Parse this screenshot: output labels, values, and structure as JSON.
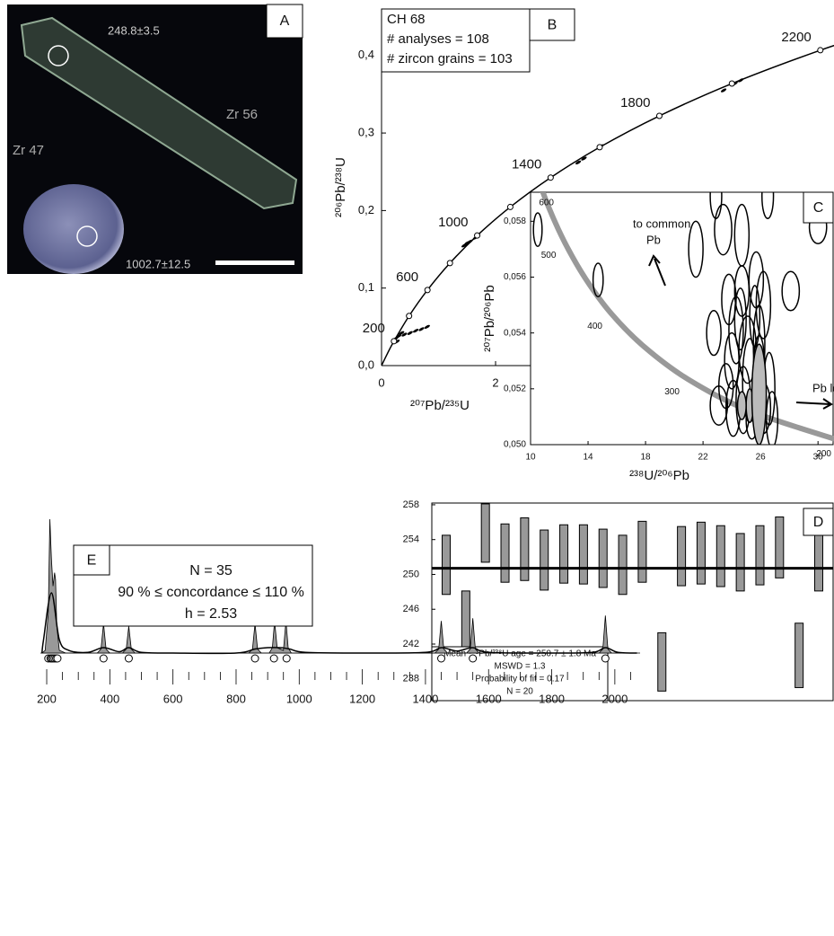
{
  "image_panel": {
    "label": "A",
    "annotations": [
      "248.8±3.5",
      "Zr 56",
      "Zr 47",
      "1002.7±12.5"
    ]
  },
  "chart_data": [
    {
      "type": "concordia",
      "panel": "B",
      "title_lines": [
        "CH 68",
        "# analyses = 108",
        "# zircon grains = 103"
      ],
      "x_label": "²⁰⁷Pb/²³⁵U",
      "y_label": "²⁰⁶Pb/²³⁸U",
      "xlim": [
        0,
        7.92
      ],
      "ylim": [
        0,
        0.46
      ],
      "xticks": [
        0,
        2
      ],
      "yticks": [
        {
          "value": 0,
          "label": "0,0"
        },
        {
          "value": 0.1,
          "label": "0,1"
        },
        {
          "value": 0.2,
          "label": "0,2"
        },
        {
          "value": 0.3,
          "label": "0,3"
        },
        {
          "value": 0.4,
          "label": "0,4"
        }
      ],
      "concordia": {
        "x": [
          0,
          0.1035,
          0.2177,
          0.4831,
          0.8057,
          1.1997,
          1.6775,
          2.2584,
          2.9657,
          3.8259,
          4.8727,
          6.1449,
          7.696,
          8.633
        ],
        "y": [
          0,
          0.0156,
          0.0315,
          0.064,
          0.0975,
          0.1322,
          0.1678,
          0.2046,
          0.2425,
          0.2817,
          0.3221,
          0.3638,
          0.4068,
          0.4288
        ],
        "markers": [
          false,
          false,
          true,
          true,
          true,
          true,
          true,
          true,
          true,
          true,
          true,
          true,
          true,
          false
        ],
        "age_labels": [
          null,
          null,
          "200",
          null,
          "600",
          null,
          "1000",
          null,
          "1400",
          null,
          "1800",
          null,
          "2200",
          null
        ]
      },
      "analyses": {
        "x": [
          0.22,
          0.25,
          0.27,
          0.3,
          0.35,
          0.4,
          0.5,
          0.6,
          0.7,
          0.8,
          1.45,
          1.5,
          1.55,
          1.65,
          1.68,
          3.45,
          3.55,
          3.85,
          6.0,
          6.2,
          6.3
        ],
        "y": [
          0.033,
          0.035,
          0.031,
          0.038,
          0.042,
          0.04,
          0.042,
          0.045,
          0.047,
          0.05,
          0.155,
          0.158,
          0.16,
          0.165,
          0.168,
          0.262,
          0.267,
          0.283,
          0.355,
          0.364,
          0.368
        ]
      }
    },
    {
      "type": "ellipse",
      "panel": "C",
      "x_label": "²³⁸U/²⁰⁶Pb",
      "y_label": "²⁰⁷Pb/²⁰⁶Pb",
      "xlim": [
        10,
        31.05
      ],
      "ylim": [
        0.05,
        0.05904
      ],
      "xticks": [
        10,
        14,
        18,
        22,
        26,
        30
      ],
      "yticks": [
        {
          "value": 0.05,
          "label": "0,050"
        },
        {
          "value": 0.052,
          "label": "0,052"
        },
        {
          "value": 0.054,
          "label": "0,054"
        },
        {
          "value": 0.056,
          "label": "0,056"
        },
        {
          "value": 0.058,
          "label": "0,058"
        }
      ],
      "curve": {
        "x": [
          31.73,
          25.29,
          20.99,
          17.92,
          15.62,
          13.83,
          12.4,
          11.23,
          10.25
        ],
        "y": [
          0.05011,
          0.0512,
          0.05233,
          0.0535,
          0.05469,
          0.05594,
          0.05722,
          0.05854,
          0.05992
        ],
        "age_labels": [
          "200",
          null,
          "300",
          null,
          "400",
          null,
          "500",
          null,
          "600"
        ]
      },
      "ellipses": {
        "x": [
          10.5,
          14.7,
          22.9,
          26.5,
          30.0,
          28.1,
          21.5,
          23.4,
          24.7,
          24.7,
          25.7,
          26.2,
          23.8,
          22.75,
          24.3,
          25.1,
          24.0,
          23.6,
          23.1,
          24.1,
          25.25,
          25.9,
          24.8,
          25.4,
          26.2,
          26.6,
          26.8,
          25.9,
          24.6,
          25.6,
          25.25,
          25.9,
          24.7
        ],
        "y": [
          0.0577,
          0.0559,
          0.0589,
          0.0589,
          0.0578,
          0.0555,
          0.057,
          0.0577,
          0.0575,
          0.0555,
          0.0559,
          0.055,
          0.0552,
          0.054,
          0.0541,
          0.0534,
          0.053,
          0.0521,
          0.0514,
          0.0513,
          0.0523,
          0.0527,
          0.0516,
          0.0509,
          0.0513,
          0.052,
          0.0509,
          0.0536,
          0.0545,
          0.0546,
          0.0514,
          0.0518,
          0.0514
        ],
        "x_err": [
          0.3,
          0.35,
          0.4,
          0.4,
          0.6,
          0.6,
          0.5,
          0.6,
          0.5,
          0.5,
          0.5,
          0.5,
          0.5,
          0.5,
          0.5,
          0.6,
          0.5,
          0.5,
          0.6,
          0.5,
          0.5,
          0.4,
          0.5,
          0.4,
          0.5,
          0.4,
          0.4,
          0.4,
          0.4,
          0.35,
          0.25,
          0.5,
          0.3
        ],
        "y_err": [
          0.0006,
          0.0006,
          0.0008,
          0.0008,
          0.0006,
          0.0007,
          0.001,
          0.0009,
          0.0011,
          0.0009,
          0.001,
          0.0012,
          0.0009,
          0.0008,
          0.0012,
          0.0012,
          0.001,
          0.0008,
          0.0007,
          0.001,
          0.0015,
          0.0012,
          0.0012,
          0.0007,
          0.0009,
          0.0013,
          0.001,
          0.0014,
          0.0011,
          0.0011,
          0.0006,
          0.0018,
          0.0005
        ],
        "filled": [
          false,
          false,
          false,
          false,
          false,
          false,
          false,
          false,
          false,
          false,
          false,
          false,
          false,
          false,
          false,
          false,
          false,
          false,
          false,
          false,
          false,
          false,
          false,
          false,
          false,
          false,
          false,
          false,
          false,
          false,
          true,
          true,
          true
        ]
      },
      "annotations": [
        "to common",
        "Pb",
        "Pb loss"
      ]
    },
    {
      "type": "errorbar",
      "panel": "D",
      "ylim": [
        235.5,
        258.2
      ],
      "yticks": [
        238,
        242,
        246,
        250,
        254,
        258
      ],
      "values": [
        251.1,
        244.85,
        254.75,
        252.45,
        252.9,
        251.65,
        252.35,
        252.3,
        251.85,
        251.1,
        252.6,
        239.95,
        252.1,
        252.45,
        252.1,
        251.4,
        252.2,
        253.1,
        240.7,
        251.5
      ],
      "errors": [
        3.4,
        3.25,
        3.35,
        3.35,
        3.6,
        3.45,
        3.35,
        3.4,
        3.35,
        3.4,
        3.5,
        3.35,
        3.4,
        3.55,
        3.5,
        3.3,
        3.4,
        3.5,
        3.7,
        3.4
      ],
      "mean": 250.7,
      "color": "#999999",
      "stats": [
        "Mean ²⁰⁶Pb/²³⁸U age = 250.7 ± 1.8 Ma",
        "MSWD = 1.3",
        "Probability of fit = 0.17",
        "N = 20"
      ]
    },
    {
      "type": "density",
      "panel": "E",
      "stats": [
        "N = 35",
        "90 % ≤ concordance ≤ 110 %",
        "h = 2.53"
      ],
      "xlim": [
        180,
        2080
      ],
      "ylim": [
        0,
        100
      ],
      "xticks": [
        200,
        400,
        600,
        800,
        1000,
        1200,
        1400,
        1600,
        1800,
        2000
      ],
      "minor_xticks": [
        250,
        300,
        350,
        450,
        500,
        550,
        650,
        700,
        750,
        850,
        900,
        950,
        1050,
        1100,
        1150,
        1250,
        1300,
        1350,
        1450,
        1500,
        1550,
        1650,
        1700,
        1750,
        1850,
        1900,
        1950,
        2050
      ],
      "series": [
        {
          "color": "#999999",
          "fill": true,
          "x": [
            185,
            195,
            205,
            210,
            215,
            220,
            225,
            228,
            232,
            240,
            260,
            360,
            372,
            380,
            388,
            400,
            440,
            452,
            460,
            468,
            480,
            840,
            852,
            860,
            868,
            880,
            905,
            915,
            922,
            930,
            950,
            958,
            965,
            975,
            1430,
            1442,
            1450,
            1458,
            1470,
            1530,
            1542,
            1550,
            1558,
            1570,
            1950,
            1962,
            1970,
            1978,
            1990,
            2070
          ],
          "values": [
            0,
            2,
            30,
            100,
            70,
            50,
            60,
            55,
            20,
            2,
            0,
            0,
            3,
            22,
            3,
            0,
            0,
            3,
            20,
            3,
            0,
            0,
            3,
            22,
            3,
            0,
            0,
            4,
            24,
            4,
            2,
            24,
            4,
            0,
            0,
            3,
            24,
            3,
            0,
            0,
            3,
            26,
            3,
            0,
            0,
            3,
            28,
            3,
            0,
            0
          ]
        },
        {
          "color": "#000000",
          "fill": false,
          "x": [
            185,
            190,
            215,
            240,
            270,
            330,
            380,
            430,
            460,
            500,
            600,
            800,
            860,
            900,
            940,
            970,
            1020,
            1200,
            1400,
            1450,
            1500,
            1550,
            1600,
            1800,
            1930,
            1970,
            2010,
            2070
          ],
          "values": [
            0,
            10,
            45,
            10,
            2,
            0.5,
            4,
            1,
            4,
            0.5,
            0,
            0,
            3,
            4,
            4,
            3,
            0.5,
            0,
            0.5,
            4,
            1.5,
            4,
            0.5,
            0,
            0.5,
            4,
            0.5,
            0
          ]
        }
      ],
      "ages": [
        205,
        212,
        216,
        220,
        225,
        230,
        234,
        380,
        460,
        860,
        920,
        960,
        1450,
        1550,
        1970
      ]
    }
  ]
}
